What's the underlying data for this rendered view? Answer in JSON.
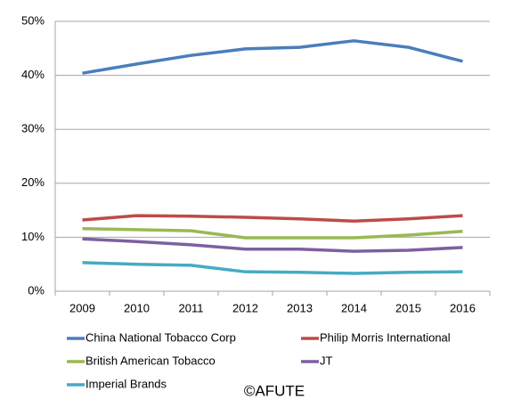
{
  "chart_data": {
    "type": "line",
    "categories": [
      "2009",
      "2010",
      "2011",
      "2012",
      "2013",
      "2014",
      "2015",
      "2016"
    ],
    "series": [
      {
        "name": "China National Tobacco Corp",
        "color": "#4a7ebb",
        "values": [
          40.4,
          42.1,
          43.7,
          44.9,
          45.2,
          46.4,
          45.2,
          42.6
        ]
      },
      {
        "name": "Philip Morris International",
        "color": "#be4b48",
        "values": [
          13.2,
          14.0,
          13.9,
          13.7,
          13.4,
          13.0,
          13.4,
          14.0
        ]
      },
      {
        "name": "British American Tobacco",
        "color": "#98b954",
        "values": [
          11.6,
          11.4,
          11.2,
          9.9,
          9.9,
          9.9,
          10.4,
          11.1
        ]
      },
      {
        "name": "JT",
        "color": "#7d60a0",
        "values": [
          9.7,
          9.2,
          8.6,
          7.8,
          7.8,
          7.4,
          7.6,
          8.1
        ]
      },
      {
        "name": "Imperial Brands",
        "color": "#46aac5",
        "values": [
          5.3,
          5.0,
          4.8,
          3.6,
          3.5,
          3.3,
          3.5,
          3.6
        ]
      }
    ],
    "ylim": [
      0,
      50
    ],
    "yticks": [
      {
        "value": 0,
        "label": "0%"
      },
      {
        "value": 10,
        "label": "10%"
      },
      {
        "value": 20,
        "label": "20%"
      },
      {
        "value": 30,
        "label": "30%"
      },
      {
        "value": 40,
        "label": "40%"
      },
      {
        "value": 50,
        "label": "50%"
      }
    ],
    "grid": true,
    "annotation": "©AFUTE"
  }
}
